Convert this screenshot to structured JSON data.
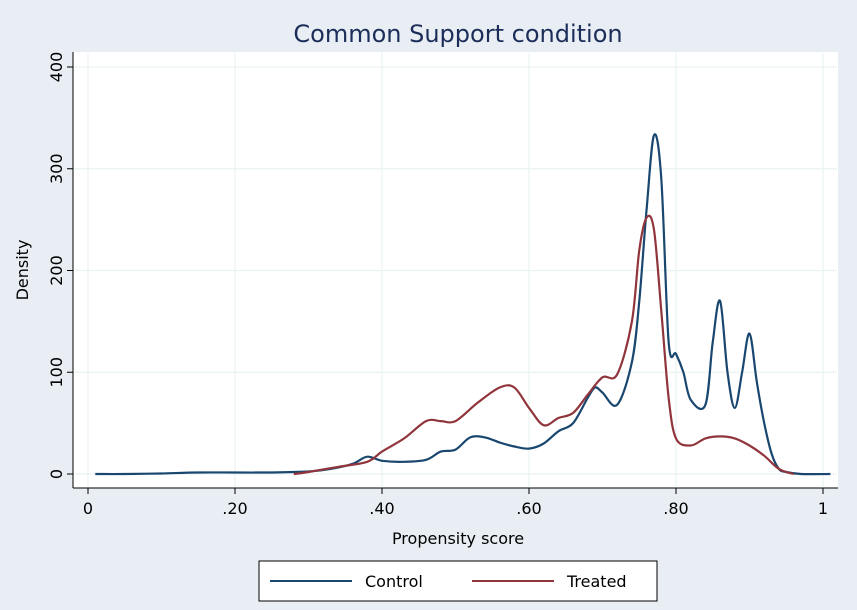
{
  "chart_data": {
    "type": "line",
    "title": "Common Support condition",
    "xlabel": "Propensity score",
    "ylabel": "Density",
    "xlim": [
      0,
      1
    ],
    "ylim": [
      0,
      400
    ],
    "x_ticks": [
      {
        "value": 0,
        "label": "0"
      },
      {
        "value": 0.2,
        "label": ".20"
      },
      {
        "value": 0.4,
        "label": ".40"
      },
      {
        "value": 0.6,
        "label": ".60"
      },
      {
        "value": 0.8,
        "label": ".80"
      },
      {
        "value": 1.0,
        "label": "1"
      }
    ],
    "y_ticks": [
      {
        "value": 0,
        "label": "0"
      },
      {
        "value": 100,
        "label": "100"
      },
      {
        "value": 200,
        "label": "200"
      },
      {
        "value": 300,
        "label": "300"
      },
      {
        "value": 400,
        "label": "400"
      }
    ],
    "grid": true,
    "legend_position": "bottom",
    "series": [
      {
        "name": "Control",
        "color": "#1a476f",
        "points": [
          [
            0.01,
            0
          ],
          [
            0.05,
            0
          ],
          [
            0.1,
            0.5
          ],
          [
            0.15,
            1.5
          ],
          [
            0.2,
            1.5
          ],
          [
            0.25,
            1.5
          ],
          [
            0.3,
            2.5
          ],
          [
            0.33,
            5
          ],
          [
            0.36,
            10
          ],
          [
            0.38,
            17
          ],
          [
            0.4,
            13
          ],
          [
            0.43,
            12
          ],
          [
            0.46,
            14
          ],
          [
            0.48,
            22
          ],
          [
            0.5,
            24
          ],
          [
            0.52,
            36
          ],
          [
            0.54,
            36
          ],
          [
            0.56,
            31
          ],
          [
            0.58,
            27
          ],
          [
            0.6,
            25
          ],
          [
            0.62,
            30
          ],
          [
            0.64,
            42
          ],
          [
            0.66,
            50
          ],
          [
            0.68,
            75
          ],
          [
            0.69,
            85
          ],
          [
            0.7,
            80
          ],
          [
            0.72,
            68
          ],
          [
            0.74,
            110
          ],
          [
            0.75,
            170
          ],
          [
            0.76,
            260
          ],
          [
            0.77,
            333
          ],
          [
            0.78,
            290
          ],
          [
            0.79,
            130
          ],
          [
            0.8,
            118
          ],
          [
            0.81,
            100
          ],
          [
            0.82,
            73
          ],
          [
            0.84,
            68
          ],
          [
            0.85,
            130
          ],
          [
            0.86,
            170
          ],
          [
            0.87,
            100
          ],
          [
            0.88,
            65
          ],
          [
            0.89,
            100
          ],
          [
            0.9,
            138
          ],
          [
            0.91,
            90
          ],
          [
            0.92,
            50
          ],
          [
            0.93,
            20
          ],
          [
            0.94,
            5
          ],
          [
            0.95,
            2
          ],
          [
            0.97,
            0
          ],
          [
            1.01,
            0
          ]
        ]
      },
      {
        "name": "Treated",
        "color": "#90353b",
        "points": [
          [
            0.28,
            0
          ],
          [
            0.3,
            2
          ],
          [
            0.34,
            7
          ],
          [
            0.38,
            12
          ],
          [
            0.4,
            22
          ],
          [
            0.43,
            35
          ],
          [
            0.46,
            52
          ],
          [
            0.48,
            52
          ],
          [
            0.5,
            52
          ],
          [
            0.53,
            70
          ],
          [
            0.56,
            85
          ],
          [
            0.58,
            85
          ],
          [
            0.6,
            65
          ],
          [
            0.62,
            48
          ],
          [
            0.64,
            55
          ],
          [
            0.66,
            60
          ],
          [
            0.68,
            78
          ],
          [
            0.7,
            95
          ],
          [
            0.72,
            98
          ],
          [
            0.74,
            150
          ],
          [
            0.75,
            220
          ],
          [
            0.76,
            252
          ],
          [
            0.77,
            240
          ],
          [
            0.78,
            160
          ],
          [
            0.79,
            75
          ],
          [
            0.8,
            35
          ],
          [
            0.82,
            28
          ],
          [
            0.84,
            35
          ],
          [
            0.86,
            37
          ],
          [
            0.88,
            35
          ],
          [
            0.9,
            28
          ],
          [
            0.92,
            18
          ],
          [
            0.94,
            5
          ],
          [
            0.96,
            0
          ]
        ]
      }
    ]
  }
}
